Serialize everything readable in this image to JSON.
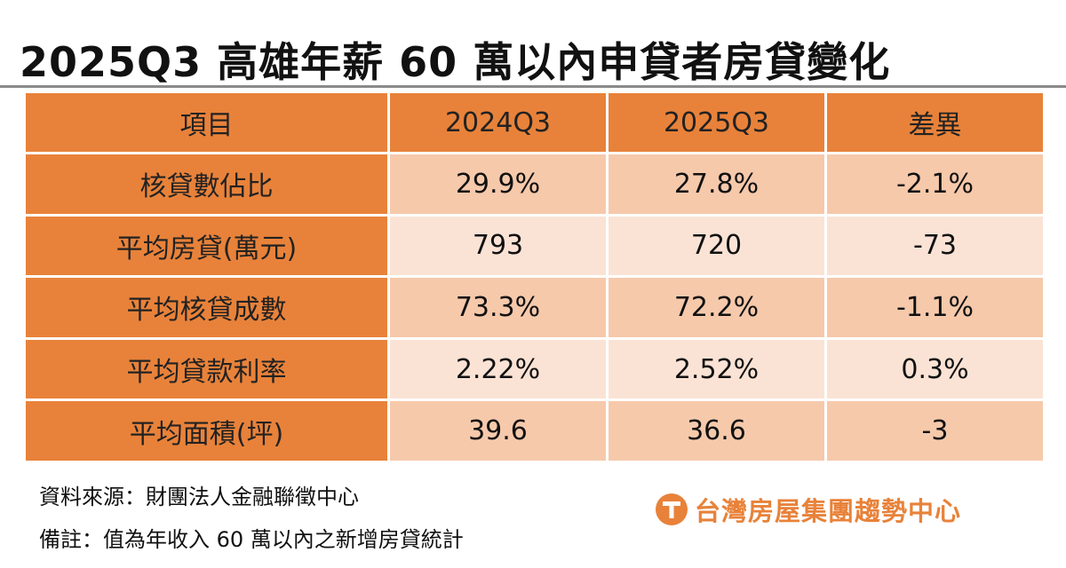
{
  "chart_data": {
    "type": "table",
    "title": "2025Q3 高雄年薪 60 萬以內申貸者房貸變化",
    "columns": [
      "項目",
      "2024Q3",
      "2025Q3",
      "差異"
    ],
    "rows": [
      {
        "label": "核貸數佔比",
        "y2024": "29.9%",
        "y2025": "27.8%",
        "diff": "-2.1%"
      },
      {
        "label": "平均房貸(萬元)",
        "y2024": "793",
        "y2025": "720",
        "diff": "-73"
      },
      {
        "label": "平均核貸成數",
        "y2024": "73.3%",
        "y2025": "72.2%",
        "diff": "-1.1%"
      },
      {
        "label": "平均貸款利率",
        "y2024": "2.22%",
        "y2025": "2.52%",
        "diff": "0.3%"
      },
      {
        "label": "平均面積(坪)",
        "y2024": "39.6",
        "y2025": "36.6",
        "diff": "-3"
      }
    ]
  },
  "notes": {
    "source": "資料來源：財團法人金融聯徵中心",
    "remark": "備註：值為年收入 60 萬以內之新增房貸統計"
  },
  "logo": {
    "text": "台灣房屋集團趨勢中心",
    "color": "#e8823a"
  },
  "colors": {
    "header": "#e8823a",
    "row_dark": "#f6c9ab",
    "row_light": "#fae3d5"
  }
}
